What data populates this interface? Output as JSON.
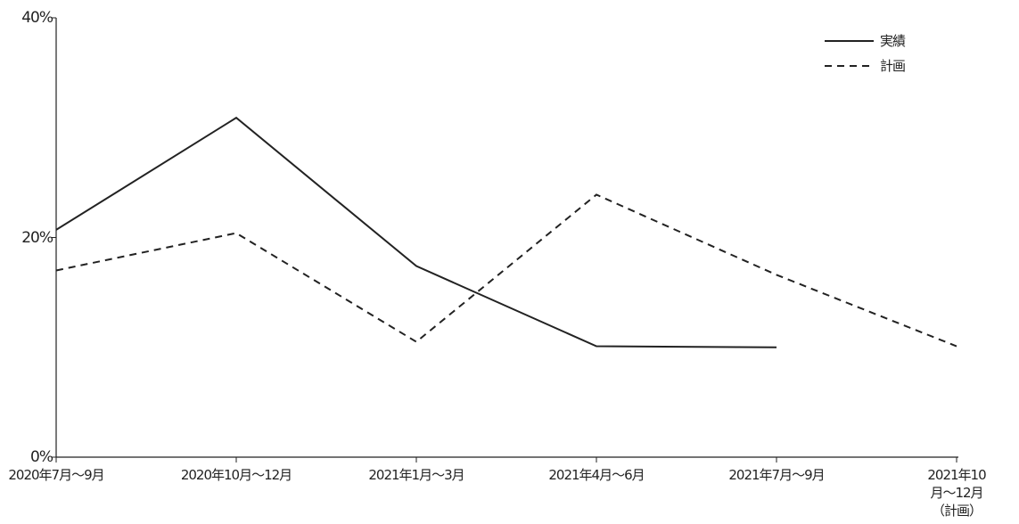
{
  "chart_data": {
    "type": "line",
    "categories": [
      "2020年7月～9月",
      "2020年10月～12月",
      "2021年1月～3月",
      "2021年4月～6月",
      "2021年7月～9月",
      "2021年10月～12月\n（計画）"
    ],
    "series": [
      {
        "name": "実績",
        "color": "#222222",
        "style": "solid",
        "values": [
          20.7,
          30.9,
          17.4,
          10.1,
          10.0,
          null
        ]
      },
      {
        "name": "計画",
        "color": "#222222",
        "style": "dashed",
        "values": [
          17.0,
          20.4,
          10.5,
          23.9,
          16.6,
          10.1
        ]
      }
    ],
    "ylim": [
      0,
      40
    ],
    "yticks": [
      {
        "value": 0,
        "label": "0%"
      },
      {
        "value": 20,
        "label": "20%"
      },
      {
        "value": 40,
        "label": "40%"
      }
    ],
    "legend": "upper-right"
  }
}
